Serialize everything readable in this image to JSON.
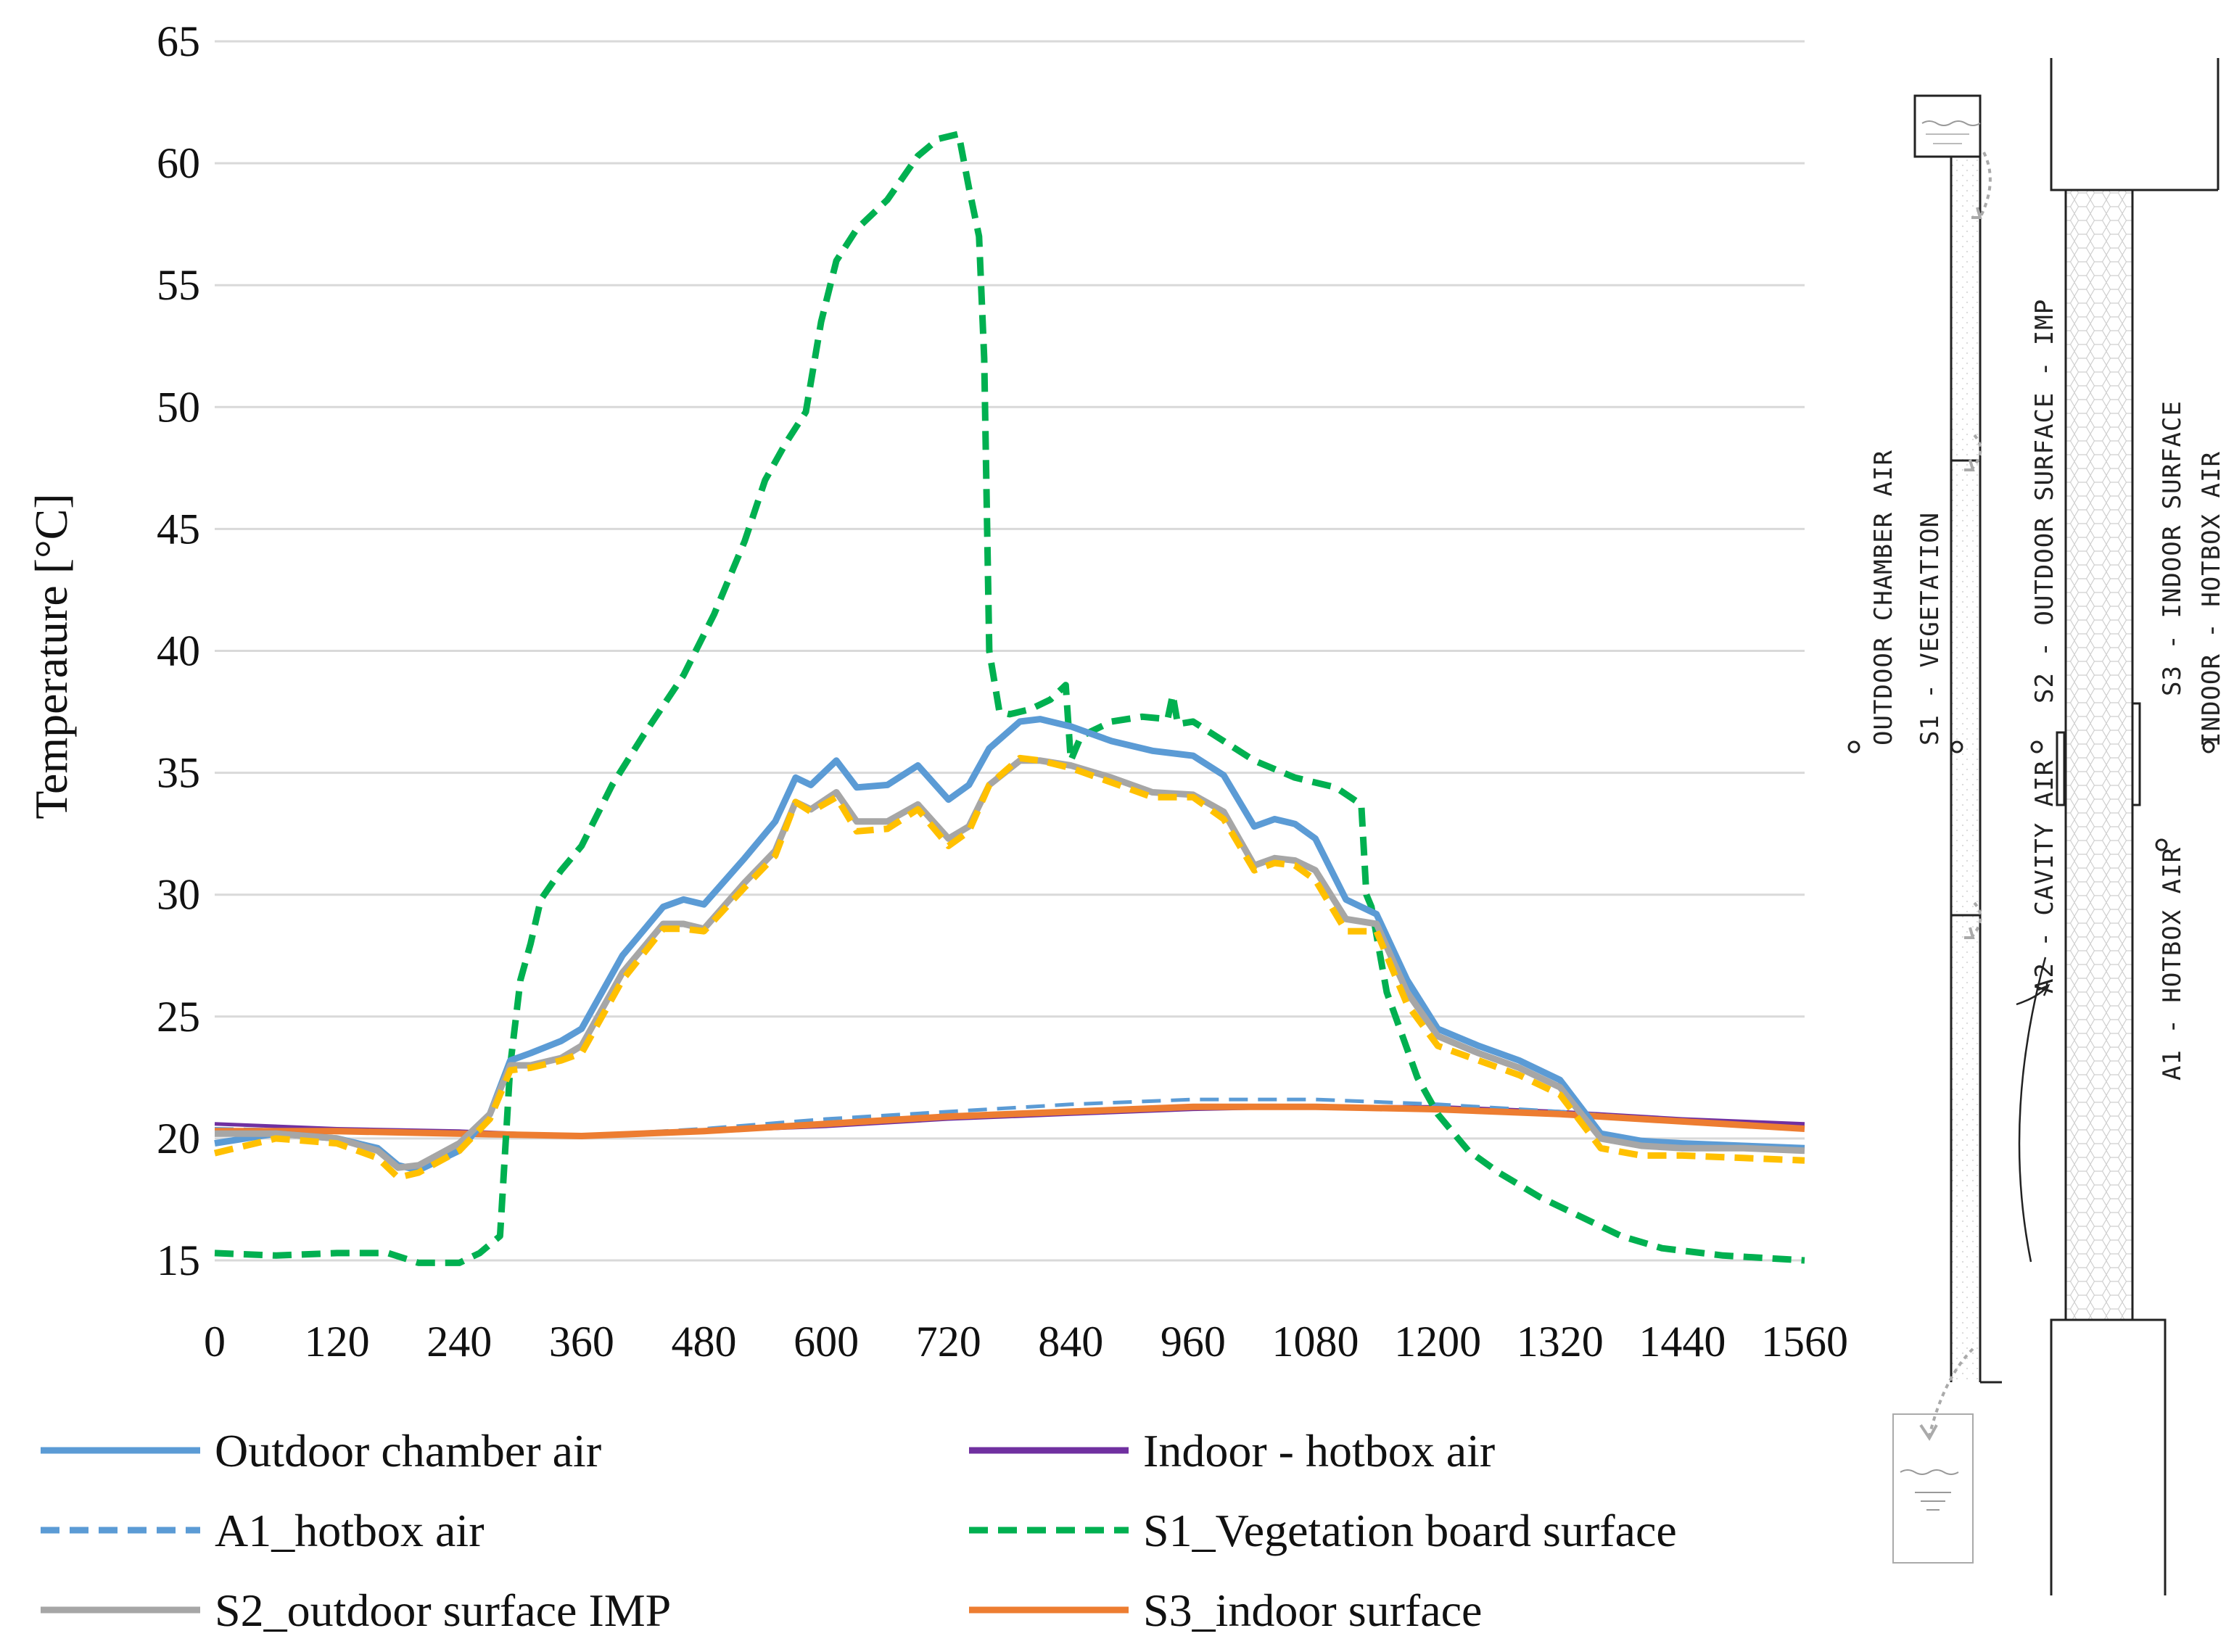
{
  "chart_data": {
    "type": "line",
    "title": "",
    "xlabel": "",
    "ylabel": "Temperature [°C]",
    "xlim": [
      0,
      1560
    ],
    "ylim": [
      15,
      65
    ],
    "xticks": [
      0,
      120,
      240,
      360,
      480,
      600,
      720,
      840,
      960,
      1080,
      1200,
      1320,
      1440,
      1560
    ],
    "yticks": [
      15,
      20,
      25,
      30,
      35,
      40,
      45,
      50,
      55,
      60,
      65
    ],
    "grid": "horizontal",
    "legend_position": "bottom",
    "series": [
      {
        "name": "Outdoor chamber air",
        "color": "#5b9bd5",
        "dash": "solid",
        "x": [
          0,
          60,
          120,
          160,
          180,
          200,
          240,
          270,
          290,
          310,
          340,
          360,
          400,
          440,
          460,
          480,
          520,
          550,
          570,
          585,
          610,
          630,
          660,
          690,
          720,
          740,
          760,
          790,
          810,
          840,
          880,
          920,
          960,
          990,
          1020,
          1040,
          1060,
          1080,
          1110,
          1140,
          1170,
          1200,
          1240,
          1280,
          1320,
          1360,
          1400,
          1440,
          1500,
          1560
        ],
        "y": [
          19.8,
          20.2,
          20.0,
          19.6,
          18.9,
          18.7,
          19.5,
          21.0,
          23.2,
          23.5,
          24.0,
          24.5,
          27.5,
          29.5,
          29.8,
          29.6,
          31.5,
          33.0,
          34.8,
          34.5,
          35.5,
          34.4,
          34.5,
          35.3,
          33.9,
          34.5,
          36.0,
          37.1,
          37.2,
          36.9,
          36.3,
          35.9,
          35.7,
          34.9,
          32.8,
          33.1,
          32.9,
          32.3,
          29.8,
          29.2,
          26.5,
          24.5,
          23.8,
          23.2,
          22.4,
          20.2,
          19.9,
          19.8,
          19.7,
          19.6
        ]
      },
      {
        "name": "Indoor - hotbox air",
        "color": "#7030a0",
        "dash": "solid",
        "x": [
          0,
          120,
          240,
          360,
          480,
          600,
          720,
          840,
          960,
          1080,
          1200,
          1320,
          1440,
          1560
        ],
        "y": [
          20.6,
          20.4,
          20.3,
          20.1,
          20.3,
          20.5,
          20.8,
          21.0,
          21.2,
          21.3,
          21.3,
          21.1,
          20.8,
          20.6
        ]
      },
      {
        "name": "A1_hotbox air",
        "color": "#5b9bd5",
        "dash": "dashed",
        "x": [
          0,
          120,
          240,
          360,
          480,
          600,
          720,
          840,
          960,
          1080,
          1200,
          1320,
          1440,
          1560
        ],
        "y": [
          20.4,
          20.3,
          20.2,
          20.1,
          20.4,
          20.8,
          21.1,
          21.4,
          21.6,
          21.6,
          21.4,
          21.1,
          20.7,
          20.4
        ]
      },
      {
        "name": "S1_Vegetation board surface",
        "color": "#00b050",
        "dash": "dashed",
        "x": [
          0,
          60,
          120,
          170,
          200,
          240,
          260,
          280,
          290,
          300,
          310,
          320,
          340,
          360,
          390,
          420,
          460,
          490,
          520,
          540,
          560,
          580,
          595,
          610,
          630,
          660,
          690,
          710,
          730,
          740,
          750,
          755,
          760,
          770,
          780,
          800,
          820,
          835,
          840,
          845,
          850,
          880,
          910,
          935,
          940,
          945,
          960,
          990,
          1020,
          1060,
          1100,
          1125,
          1130,
          1135,
          1150,
          1180,
          1200,
          1230,
          1260,
          1300,
          1340,
          1380,
          1420,
          1480,
          1560
        ],
        "y": [
          15.3,
          15.2,
          15.3,
          15.3,
          14.9,
          14.9,
          15.3,
          16.0,
          23.0,
          26.5,
          28.0,
          29.8,
          31.0,
          32.0,
          34.5,
          36.5,
          39.0,
          41.5,
          44.5,
          47.0,
          48.5,
          49.8,
          53.5,
          56.0,
          57.3,
          58.5,
          60.3,
          61.0,
          61.2,
          59.0,
          57.0,
          52.0,
          40.0,
          37.5,
          37.4,
          37.6,
          38.0,
          38.6,
          35.5,
          36.0,
          36.5,
          37.1,
          37.3,
          37.2,
          38.2,
          37.0,
          37.1,
          36.3,
          35.5,
          34.8,
          34.4,
          33.7,
          30.0,
          29.5,
          26.0,
          22.5,
          21.0,
          19.5,
          18.6,
          17.6,
          16.8,
          16.0,
          15.5,
          15.2,
          15.0
        ]
      },
      {
        "name": "S2_outdoor surface IMP",
        "color": "#a6a6a6",
        "dash": "solid",
        "x": [
          0,
          60,
          120,
          160,
          180,
          200,
          240,
          270,
          290,
          310,
          340,
          360,
          400,
          440,
          460,
          480,
          520,
          550,
          570,
          585,
          610,
          630,
          660,
          690,
          720,
          740,
          760,
          790,
          810,
          840,
          880,
          920,
          960,
          990,
          1020,
          1040,
          1060,
          1080,
          1110,
          1140,
          1170,
          1200,
          1240,
          1280,
          1320,
          1360,
          1400,
          1440,
          1500,
          1560
        ],
        "y": [
          20.2,
          20.2,
          20.0,
          19.5,
          18.8,
          18.9,
          19.8,
          21.0,
          23.0,
          23.0,
          23.3,
          23.8,
          26.8,
          28.8,
          28.8,
          28.6,
          30.5,
          31.8,
          33.8,
          33.5,
          34.2,
          33.0,
          33.0,
          33.7,
          32.3,
          32.8,
          34.5,
          35.5,
          35.5,
          35.3,
          34.8,
          34.2,
          34.1,
          33.4,
          31.2,
          31.5,
          31.4,
          31.0,
          29.0,
          28.8,
          26.0,
          24.2,
          23.5,
          22.9,
          22.1,
          20.0,
          19.7,
          19.6,
          19.6,
          19.5
        ]
      },
      {
        "name": "S3_indoor surface",
        "color": "#ed7d31",
        "dash": "solid",
        "x": [
          0,
          120,
          240,
          360,
          480,
          600,
          720,
          840,
          960,
          1080,
          1200,
          1320,
          1440,
          1560
        ],
        "y": [
          20.3,
          20.3,
          20.2,
          20.1,
          20.3,
          20.6,
          20.9,
          21.1,
          21.3,
          21.3,
          21.2,
          21.0,
          20.7,
          20.4
        ]
      },
      {
        "name": "Yellow overlay (S2 dashed)",
        "color": "#ffc000",
        "dash": "dashed",
        "in_legend": false,
        "x": [
          0,
          60,
          120,
          160,
          180,
          200,
          240,
          270,
          290,
          310,
          340,
          360,
          400,
          440,
          460,
          480,
          520,
          550,
          570,
          585,
          610,
          630,
          660,
          690,
          720,
          740,
          760,
          790,
          810,
          840,
          880,
          920,
          960,
          990,
          1020,
          1040,
          1060,
          1080,
          1110,
          1140,
          1170,
          1200,
          1240,
          1280,
          1320,
          1360,
          1400,
          1440,
          1500,
          1560
        ],
        "y": [
          19.4,
          20.0,
          19.8,
          19.2,
          18.4,
          18.6,
          19.5,
          20.8,
          22.8,
          22.9,
          23.2,
          23.5,
          26.5,
          28.6,
          28.6,
          28.5,
          30.3,
          31.6,
          33.8,
          33.4,
          34.0,
          32.6,
          32.7,
          33.5,
          32.0,
          32.6,
          34.5,
          35.6,
          35.5,
          35.2,
          34.6,
          34.0,
          34.0,
          33.1,
          31.0,
          31.3,
          31.2,
          30.6,
          28.5,
          28.5,
          25.5,
          23.8,
          23.2,
          22.6,
          21.8,
          19.6,
          19.3,
          19.3,
          19.2,
          19.1
        ]
      }
    ]
  },
  "legend": {
    "items": [
      {
        "label": "Outdoor chamber air",
        "color": "#5b9bd5",
        "dash": "solid"
      },
      {
        "label": "Indoor - hotbox air",
        "color": "#7030a0",
        "dash": "solid"
      },
      {
        "label": "A1_hotbox air",
        "color": "#5b9bd5",
        "dash": "dashed"
      },
      {
        "label": "S1_Vegetation board surface",
        "color": "#00b050",
        "dash": "dashed"
      },
      {
        "label": "S2_outdoor surface IMP",
        "color": "#a6a6a6",
        "dash": "solid"
      },
      {
        "label": "S3_indoor surface",
        "color": "#ed7d31",
        "dash": "solid"
      }
    ]
  },
  "diagram": {
    "labels": {
      "outdoor_chamber_air": "OUTDOOR CHAMBER AIR",
      "s1_vegetation": "S1 - VEGETATION",
      "s2_outdoor_surface": "S2 - OUTDOOR SURFACE - IMP",
      "a2_cavity_air": "A2 - CAVITY AIR",
      "s3_indoor_surface": "S3 - INDOOR SURFACE",
      "indoor_hotbox_air": "INDOOR - HOTBOX AIR",
      "a1_hotbox_air": "A1 - HOTBOX AIR"
    }
  }
}
